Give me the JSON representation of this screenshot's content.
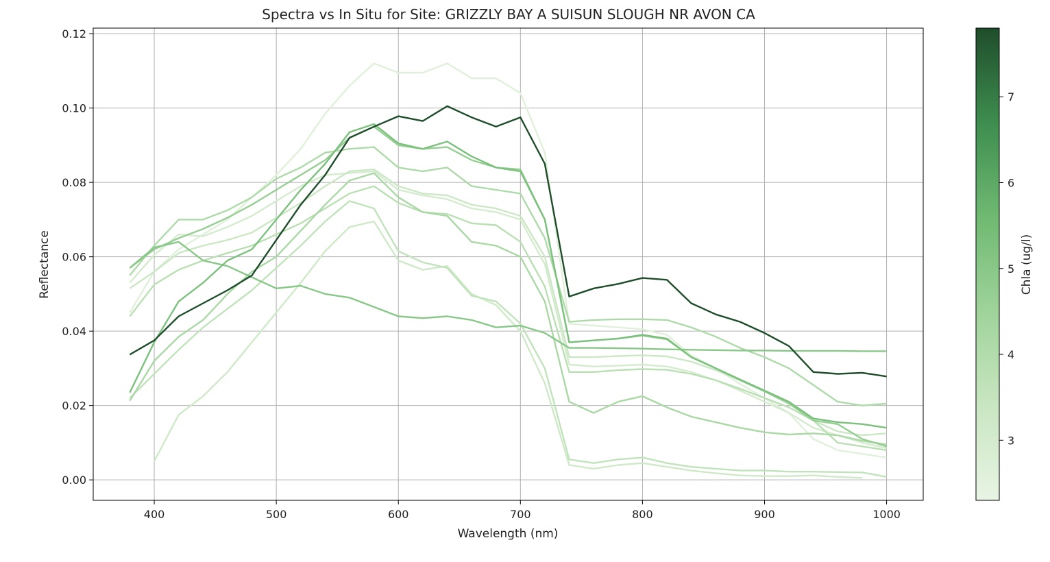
{
  "chart_data": {
    "type": "line",
    "title": "Spectra vs In Situ for Site: GRIZZLY BAY A SUISUN SLOUGH NR AVON CA",
    "xlabel": "Wavelength (nm)",
    "ylabel": "Reflectance",
    "xlim": [
      350,
      1030
    ],
    "ylim": [
      -0.0055,
      0.1215
    ],
    "x_ticks": [
      400,
      500,
      600,
      700,
      800,
      900,
      1000
    ],
    "x_tick_labels": [
      "400",
      "500",
      "600",
      "700",
      "800",
      "900",
      "1000"
    ],
    "y_ticks": [
      0.0,
      0.02,
      0.04,
      0.06,
      0.08,
      0.1,
      0.12
    ],
    "y_tick_labels": [
      "0.00",
      "0.02",
      "0.04",
      "0.06",
      "0.08",
      "0.10",
      "0.12"
    ],
    "grid": true,
    "colorbar": {
      "label": "Chla (ug/l)",
      "range": [
        2.3,
        7.8
      ],
      "ticks": [
        3,
        4,
        5,
        6,
        7
      ],
      "tick_labels": [
        "3",
        "4",
        "5",
        "6",
        "7"
      ],
      "colors": [
        "#e8f4e4",
        "#c9e6c2",
        "#9fd39a",
        "#6fb972",
        "#3e8d4f",
        "#1f4d2b"
      ]
    },
    "x": [
      380,
      400,
      420,
      440,
      460,
      480,
      500,
      520,
      540,
      560,
      580,
      600,
      620,
      640,
      660,
      680,
      700,
      720,
      740,
      760,
      780,
      800,
      820,
      840,
      860,
      880,
      900,
      920,
      940,
      960,
      980,
      1000
    ],
    "series": [
      {
        "chla": 7.8,
        "values": [
          0.0337,
          0.0375,
          0.044,
          0.0475,
          0.051,
          0.055,
          0.0645,
          0.074,
          0.082,
          0.092,
          0.095,
          0.0978,
          0.0965,
          0.1005,
          0.0975,
          0.095,
          0.0975,
          0.085,
          0.0493,
          0.0515,
          0.0527,
          0.0543,
          0.0538,
          0.0475,
          0.0445,
          0.0425,
          0.0395,
          0.036,
          0.029,
          0.0285,
          0.0288,
          0.0278
        ]
      },
      {
        "chla": 5.3,
        "values": [
          0.0235,
          0.037,
          0.048,
          0.053,
          0.059,
          0.062,
          0.07,
          0.078,
          0.085,
          0.0935,
          0.0957,
          0.0905,
          0.089,
          0.091,
          0.087,
          0.084,
          0.083,
          0.07,
          0.037,
          0.0375,
          0.038,
          0.039,
          0.038,
          0.033,
          0.03,
          0.027,
          0.024,
          0.021,
          0.0165,
          0.0155,
          0.015,
          0.014
        ]
      },
      {
        "chla": 5.0,
        "values": [
          0.057,
          0.0625,
          0.064,
          0.059,
          0.0575,
          0.0545,
          0.0515,
          0.0522,
          0.05,
          0.049,
          0.0465,
          0.044,
          0.0435,
          0.044,
          0.043,
          0.041,
          0.0415,
          0.0395,
          0.0355,
          0.0355,
          0.0354,
          0.0353,
          0.0351,
          0.035,
          0.0349,
          0.0348,
          0.0348,
          0.0347,
          0.0347,
          0.0347,
          0.0346,
          0.0346
        ]
      },
      {
        "chla": 4.7,
        "values": [
          0.057,
          0.062,
          0.065,
          0.0675,
          0.0705,
          0.074,
          0.078,
          0.082,
          0.086,
          0.092,
          0.095,
          0.09,
          0.089,
          0.0895,
          0.086,
          0.084,
          0.0835,
          0.07,
          0.037,
          0.0375,
          0.038,
          0.0388,
          0.0378,
          0.033,
          0.03,
          0.0268,
          0.0238,
          0.0205,
          0.016,
          0.015,
          0.011,
          0.009
        ]
      },
      {
        "chla": 4.2,
        "values": [
          0.0213,
          0.032,
          0.0385,
          0.043,
          0.05,
          0.056,
          0.06,
          0.067,
          0.074,
          0.0805,
          0.0825,
          0.076,
          0.072,
          0.071,
          0.064,
          0.063,
          0.06,
          0.048,
          0.021,
          0.018,
          0.021,
          0.0225,
          0.0195,
          0.017,
          0.0155,
          0.014,
          0.0128,
          0.0122,
          0.0125,
          0.012,
          0.0105,
          0.0095
        ]
      },
      {
        "chla": 4.1,
        "values": [
          0.055,
          0.063,
          0.07,
          0.07,
          0.0725,
          0.076,
          0.081,
          0.084,
          0.088,
          0.089,
          0.0895,
          0.084,
          0.083,
          0.084,
          0.079,
          0.078,
          0.077,
          0.065,
          0.0425,
          0.043,
          0.0432,
          0.0432,
          0.043,
          0.041,
          0.0385,
          0.0355,
          0.033,
          0.03,
          0.0255,
          0.021,
          0.02,
          0.0205
        ]
      },
      {
        "chla": 3.8,
        "values": [
          0.044,
          0.0525,
          0.0565,
          0.059,
          0.061,
          0.063,
          0.066,
          0.069,
          0.073,
          0.077,
          0.079,
          0.0745,
          0.072,
          0.0715,
          0.069,
          0.0685,
          0.064,
          0.052,
          0.029,
          0.029,
          0.0295,
          0.0298,
          0.0296,
          0.0285,
          0.0268,
          0.0245,
          0.022,
          0.0195,
          0.016,
          0.01,
          0.009,
          0.008
        ]
      },
      {
        "chla": 3.6,
        "values": [
          0.022,
          0.0285,
          0.035,
          0.041,
          0.046,
          0.051,
          0.057,
          0.063,
          0.0695,
          0.075,
          0.073,
          0.0615,
          0.0585,
          0.057,
          0.0495,
          0.048,
          0.042,
          0.03,
          0.0055,
          0.0045,
          0.0055,
          0.006,
          0.0045,
          0.0035,
          0.003,
          0.0025,
          0.0025,
          0.0022,
          0.0022,
          0.0021,
          0.002,
          0.0008
        ]
      },
      {
        "chla": 3.3,
        "values": [
          0.0515,
          0.056,
          0.061,
          0.063,
          0.0645,
          0.0665,
          0.0705,
          0.0745,
          0.079,
          0.083,
          0.0835,
          0.079,
          0.077,
          0.0765,
          0.074,
          0.073,
          0.071,
          0.06,
          0.033,
          0.033,
          0.0333,
          0.0335,
          0.0332,
          0.0318,
          0.0295,
          0.0268,
          0.024,
          0.021,
          0.016,
          0.013,
          0.012,
          0.0125
        ]
      },
      {
        "chla": 3.2,
        "values": [
          null,
          0.005,
          0.0175,
          0.0225,
          0.029,
          0.037,
          0.045,
          0.053,
          0.0615,
          0.068,
          0.0695,
          0.059,
          0.0565,
          0.0575,
          0.05,
          0.047,
          0.04,
          0.026,
          0.004,
          0.003,
          0.004,
          0.0045,
          0.0035,
          0.0025,
          0.0018,
          0.0012,
          0.001,
          0.001,
          0.0012,
          0.0008,
          0.0005,
          null
        ]
      },
      {
        "chla": 3.0,
        "values": [
          0.053,
          0.0605,
          0.066,
          0.0655,
          0.068,
          0.071,
          0.075,
          0.079,
          0.082,
          0.0825,
          0.083,
          0.078,
          0.0765,
          0.0755,
          0.073,
          0.072,
          0.07,
          0.058,
          0.031,
          0.0305,
          0.0307,
          0.031,
          0.0305,
          0.029,
          0.0268,
          0.024,
          0.021,
          0.018,
          0.014,
          0.012,
          0.01,
          0.0085
        ]
      },
      {
        "chla": 2.6,
        "values": [
          0.045,
          0.056,
          0.062,
          0.066,
          0.07,
          0.076,
          0.082,
          0.089,
          0.0985,
          0.106,
          0.112,
          0.1095,
          0.1095,
          0.112,
          0.108,
          0.108,
          0.104,
          0.088,
          0.042,
          0.0415,
          0.041,
          0.0405,
          0.039,
          0.0335,
          0.03,
          0.0258,
          0.022,
          0.018,
          0.011,
          0.008,
          0.007,
          0.006
        ]
      }
    ]
  }
}
